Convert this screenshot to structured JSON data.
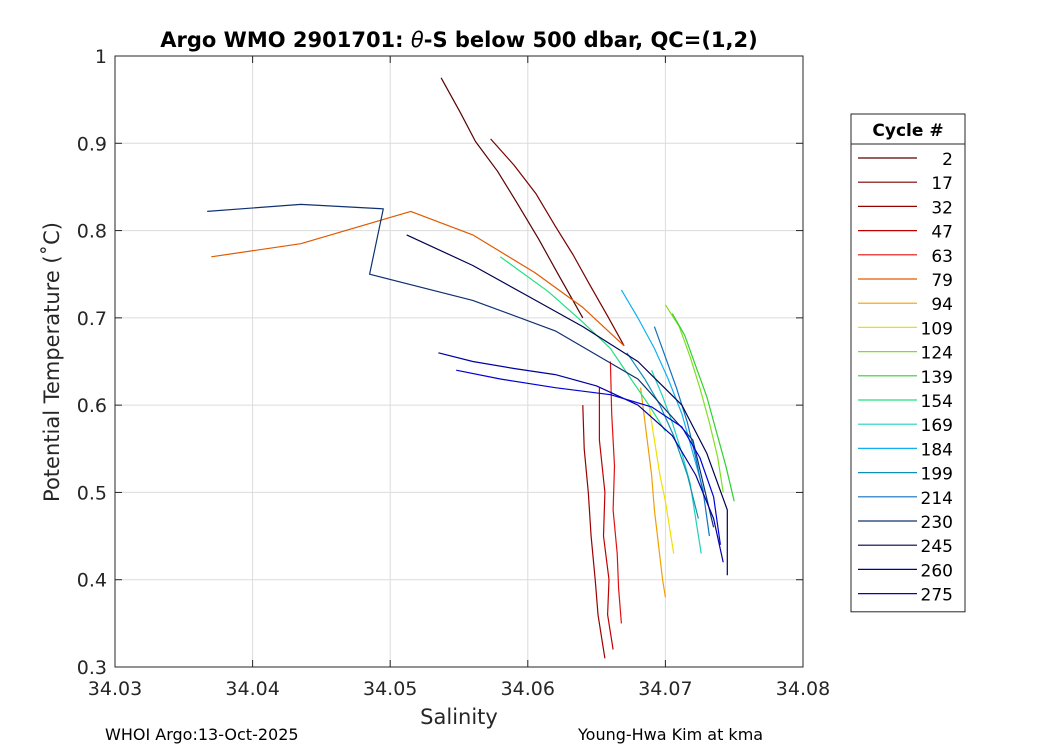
{
  "chart_data": {
    "type": "line",
    "title": "Argo WMO 2901701: θ-S below 500 dbar,  QC=(1,2)",
    "xlabel": "Salinity",
    "ylabel": "Potential Temperature (˚C)",
    "xlim": [
      34.03,
      34.08
    ],
    "ylim": [
      0.3,
      1.0
    ],
    "xticks": [
      "34.03",
      "34.04",
      "34.05",
      "34.06",
      "34.07",
      "34.08"
    ],
    "yticks": [
      "0.3",
      "0.4",
      "0.5",
      "0.6",
      "0.7",
      "0.8",
      "0.9",
      "1"
    ],
    "grid": true,
    "legend": {
      "title": "Cycle #",
      "position": "right"
    },
    "series": [
      {
        "name": "2",
        "color": "#5a0000",
        "x": [
          34.0537,
          34.0551,
          34.0562,
          34.0578,
          34.0592,
          34.0608,
          34.0622,
          34.064
        ],
        "y": [
          0.975,
          0.935,
          0.902,
          0.868,
          0.832,
          0.79,
          0.75,
          0.7
        ]
      },
      {
        "name": "17",
        "color": "#7a0000",
        "x": [
          34.0573,
          34.059,
          34.0606,
          34.062,
          34.0633,
          34.0645,
          34.0658,
          34.067
        ],
        "y": [
          0.905,
          0.875,
          0.842,
          0.805,
          0.772,
          0.738,
          0.702,
          0.668
        ]
      },
      {
        "name": "32",
        "color": "#9a0000",
        "x": [
          34.064,
          34.0641,
          34.0644,
          34.0646,
          34.0649,
          34.0651,
          34.0654,
          34.0656
        ],
        "y": [
          0.6,
          0.55,
          0.5,
          0.45,
          0.4,
          0.36,
          0.33,
          0.31
        ]
      },
      {
        "name": "47",
        "color": "#c00000",
        "x": [
          34.0652,
          34.0652,
          34.0656,
          34.0655,
          34.0659,
          34.0658,
          34.0662
        ],
        "y": [
          0.62,
          0.56,
          0.5,
          0.45,
          0.4,
          0.36,
          0.32
        ]
      },
      {
        "name": "63",
        "color": "#e01010",
        "x": [
          34.066,
          34.0661,
          34.0663,
          34.0662,
          34.0665,
          34.0666,
          34.0668
        ],
        "y": [
          0.65,
          0.59,
          0.53,
          0.48,
          0.43,
          0.39,
          0.35
        ]
      },
      {
        "name": "79",
        "color": "#e05a00",
        "x": [
          34.037,
          34.0435,
          34.0515,
          34.056,
          34.0605,
          34.064,
          34.067
        ],
        "y": [
          0.77,
          0.785,
          0.822,
          0.795,
          0.752,
          0.712,
          0.668
        ]
      },
      {
        "name": "94",
        "color": "#f0a000",
        "x": [
          34.0682,
          34.0686,
          34.069,
          34.0692,
          34.0695,
          34.0698,
          34.07
        ],
        "y": [
          0.62,
          0.57,
          0.52,
          0.48,
          0.44,
          0.4,
          0.38
        ]
      },
      {
        "name": "109",
        "color": "#f0e000",
        "x": [
          34.0688,
          34.0692,
          34.0696,
          34.07,
          34.0703,
          34.0706
        ],
        "y": [
          0.6,
          0.56,
          0.52,
          0.49,
          0.46,
          0.43
        ]
      },
      {
        "name": "124",
        "color": "#80e020",
        "x": [
          34.07,
          34.071,
          34.0718,
          34.0725,
          34.0732,
          34.0738,
          34.0742
        ],
        "y": [
          0.715,
          0.69,
          0.655,
          0.62,
          0.58,
          0.54,
          0.5
        ]
      },
      {
        "name": "139",
        "color": "#30d030",
        "x": [
          34.0705,
          34.0714,
          34.0722,
          34.073,
          34.0737,
          34.0744,
          34.075
        ],
        "y": [
          0.705,
          0.68,
          0.645,
          0.61,
          0.57,
          0.53,
          0.49
        ]
      },
      {
        "name": "154",
        "color": "#20e080",
        "x": [
          34.058,
          34.0615,
          34.064,
          34.066,
          34.0675,
          34.0688,
          34.07
        ],
        "y": [
          0.77,
          0.73,
          0.695,
          0.665,
          0.63,
          0.6,
          0.57
        ]
      },
      {
        "name": "169",
        "color": "#20d0c0",
        "x": [
          34.069,
          34.0698,
          34.0705,
          34.0712,
          34.0718,
          34.0722,
          34.0726
        ],
        "y": [
          0.64,
          0.61,
          0.58,
          0.545,
          0.51,
          0.47,
          0.43
        ]
      },
      {
        "name": "184",
        "color": "#10b0f0",
        "x": [
          34.0668,
          34.068,
          34.0692,
          34.0702,
          34.0712,
          34.072,
          34.0728
        ],
        "y": [
          0.732,
          0.7,
          0.665,
          0.63,
          0.59,
          0.545,
          0.5
        ]
      },
      {
        "name": "199",
        "color": "#1090b0",
        "x": [
          34.0672,
          34.0685,
          34.0696,
          34.0706,
          34.0716,
          34.0724
        ],
        "y": [
          0.66,
          0.63,
          0.6,
          0.565,
          0.52,
          0.47
        ]
      },
      {
        "name": "214",
        "color": "#1070c0",
        "x": [
          34.0692,
          34.07,
          34.0708,
          34.0716,
          34.0722,
          34.0728,
          34.0732
        ],
        "y": [
          0.69,
          0.655,
          0.62,
          0.58,
          0.54,
          0.495,
          0.45
        ]
      },
      {
        "name": "230",
        "color": "#103070",
        "x": [
          34.0367,
          34.0435,
          34.0495,
          34.0485,
          34.056,
          34.062,
          34.068,
          34.072,
          34.0735
        ],
        "y": [
          0.822,
          0.83,
          0.825,
          0.75,
          0.72,
          0.685,
          0.63,
          0.56,
          0.46
        ]
      },
      {
        "name": "245",
        "color": "#000050",
        "x": [
          34.0512,
          34.056,
          34.06,
          34.064,
          34.068,
          34.0712,
          34.073,
          34.0745,
          34.0745
        ],
        "y": [
          0.795,
          0.76,
          0.725,
          0.69,
          0.65,
          0.6,
          0.545,
          0.48,
          0.405
        ]
      },
      {
        "name": "260",
        "color": "#0000a0",
        "x": [
          34.0535,
          34.056,
          34.059,
          34.062,
          34.065,
          34.068,
          34.0705,
          34.0722,
          34.0735,
          34.0742
        ],
        "y": [
          0.66,
          0.65,
          0.642,
          0.635,
          0.622,
          0.6,
          0.565,
          0.52,
          0.47,
          0.42
        ]
      },
      {
        "name": "275",
        "color": "#0000d8",
        "x": [
          34.0548,
          34.058,
          34.062,
          34.066,
          34.069,
          34.0712,
          34.0725,
          34.0735,
          34.074
        ],
        "y": [
          0.64,
          0.63,
          0.62,
          0.612,
          0.598,
          0.575,
          0.54,
          0.495,
          0.44
        ]
      }
    ]
  },
  "footer": {
    "left": "WHOI Argo:13-Oct-2025",
    "right": "Young-Hwa Kim at kma"
  }
}
